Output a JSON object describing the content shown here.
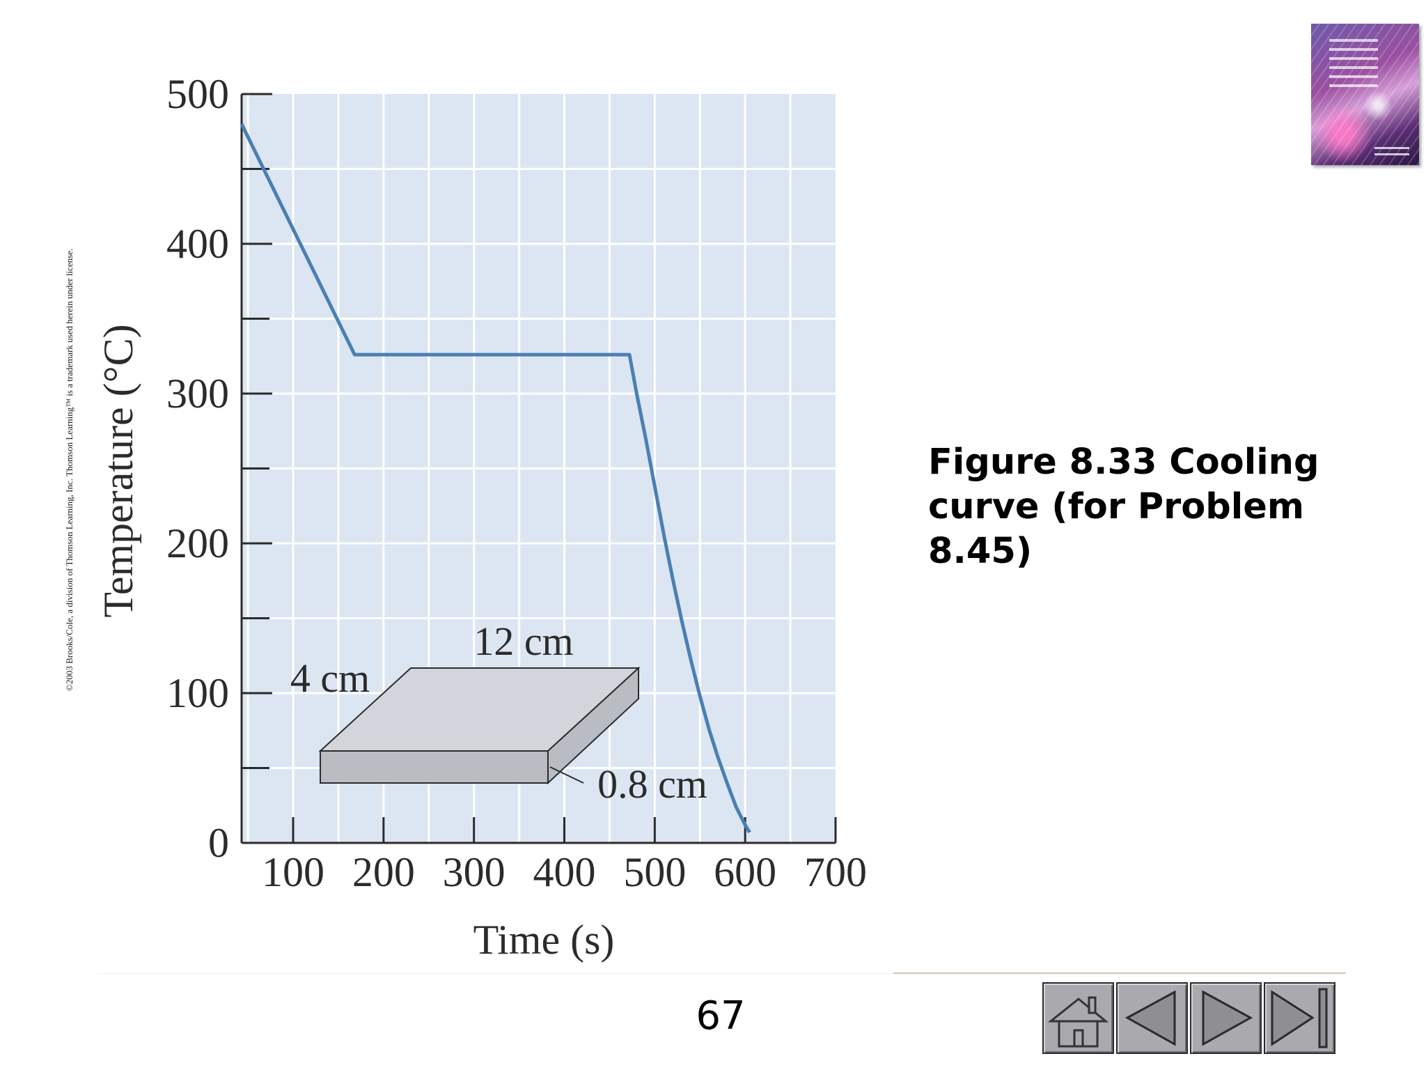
{
  "copyright": "©2003 Brooks/Cole, a division of Thomson Learning, Inc.  Thomson Learning™ is a trademark used herein under license.",
  "caption": "Figure 8.33  Cooling curve (for Problem 8.45)",
  "page_number": "67",
  "nav_buttons": {
    "home": "home-icon",
    "previous": "previous-icon",
    "next": "next-icon",
    "last": "last-slide-icon"
  },
  "colors": {
    "plot_background": "#dce6f2",
    "grid": "#ffffff",
    "curve": "#4a7fb3",
    "axis": "#2b2b2b",
    "slab_top": "#d2d6dc",
    "slab_side": "#b9bcc2"
  },
  "chart_data": {
    "type": "line",
    "title": "",
    "xlabel": "Time (s)",
    "ylabel": "Temperature (°C)",
    "xlim": [
      43,
      700
    ],
    "ylim": [
      0,
      500
    ],
    "xticks": [
      100,
      200,
      300,
      400,
      500,
      600,
      700
    ],
    "yticks": [
      0,
      100,
      200,
      300,
      400,
      500
    ],
    "x_minor_step": 50,
    "y_minor_step": 50,
    "grid": true,
    "series": [
      {
        "x": [
          43,
          168,
          472,
          480,
          490,
          500,
          510,
          520,
          530,
          540,
          550,
          560,
          570,
          580,
          590,
          600,
          605
        ],
        "y": [
          480,
          326,
          326,
          300,
          270,
          238,
          206,
          176,
          148,
          122,
          98,
          76,
          57,
          40,
          24,
          12,
          7
        ]
      }
    ],
    "annotations": {
      "length": "12 cm",
      "width": "4 cm",
      "thickness": "0.8 cm"
    }
  }
}
